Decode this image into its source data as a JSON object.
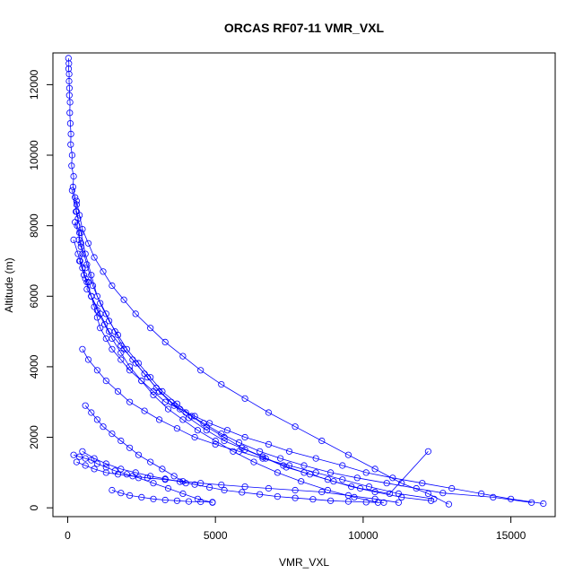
{
  "chart_data": {
    "type": "line",
    "title": "ORCAS RF07-11 VMR_VXL",
    "xlabel": "VMR_VXL",
    "ylabel": "Altitude (m)",
    "xlim": [
      -500,
      16500
    ],
    "ylim": [
      -250,
      12900
    ],
    "xticks": [
      0,
      5000,
      10000,
      15000
    ],
    "yticks": [
      0,
      2000,
      4000,
      6000,
      8000,
      10000,
      12000
    ],
    "series_color": "#0000ff",
    "marker": "open-circle",
    "grid": false,
    "legend": "none",
    "series": [
      {
        "x": [
          25,
          40,
          30,
          50,
          45,
          60,
          55,
          80,
          70,
          90,
          110,
          100,
          150,
          130,
          200,
          180,
          250,
          300,
          280,
          350,
          320,
          400,
          380,
          450,
          500,
          420,
          600,
          550,
          700,
          650,
          800,
          900,
          1000,
          1100,
          1300,
          1500,
          1800,
          2100,
          2500,
          2900,
          3300,
          3800,
          4300,
          4800,
          5400,
          6000,
          6800,
          7500,
          8400,
          9300,
          10100,
          11000,
          12000,
          13000,
          14000,
          15000,
          16100
        ],
        "y": [
          12750,
          12600,
          12450,
          12300,
          12100,
          11900,
          11700,
          11500,
          11200,
          10900,
          10600,
          10300,
          10000,
          9700,
          9400,
          9100,
          8800,
          8600,
          8400,
          8200,
          8000,
          7800,
          7600,
          7400,
          7200,
          7000,
          6800,
          6600,
          6400,
          6200,
          6000,
          5700,
          5400,
          5100,
          4800,
          4500,
          4200,
          3900,
          3600,
          3300,
          3000,
          2800,
          2600,
          2400,
          2200,
          2000,
          1800,
          1600,
          1400,
          1200,
          1000,
          850,
          700,
          550,
          400,
          250,
          120
        ]
      },
      {
        "x": [
          300,
          400,
          500,
          700,
          900,
          1200,
          1500,
          1900,
          2300,
          2800,
          3300,
          3900,
          4500,
          5200,
          6000,
          6800,
          7700,
          8600,
          9500,
          10400,
          11300,
          12200,
          12900
        ],
        "y": [
          8700,
          8300,
          7900,
          7500,
          7100,
          6700,
          6300,
          5900,
          5500,
          5100,
          4700,
          4300,
          3900,
          3500,
          3100,
          2700,
          2300,
          1900,
          1500,
          1100,
          700,
          400,
          100
        ]
      },
      {
        "x": [
          200,
          350,
          500,
          650,
          800,
          1000,
          1250,
          1500,
          1800,
          2100,
          2500,
          2900,
          3400,
          3900,
          4400,
          5000,
          5600,
          6300,
          7100,
          7900,
          8800,
          9700,
          10500
        ],
        "y": [
          7600,
          7200,
          6800,
          6400,
          6000,
          5600,
          5200,
          4800,
          4400,
          4000,
          3600,
          3200,
          2800,
          2500,
          2200,
          1900,
          1600,
          1300,
          1000,
          750,
          500,
          300,
          150
        ]
      },
      {
        "x": [
          250,
          450,
          650,
          850,
          1100,
          1400,
          1700,
          2000,
          2400,
          2800,
          3200,
          3700,
          4200,
          4700,
          5300,
          5900,
          6600,
          7300,
          8000,
          8800,
          9600,
          10400,
          11300,
          12300
        ],
        "y": [
          8100,
          7500,
          6900,
          6300,
          5800,
          5300,
          4900,
          4500,
          4100,
          3700,
          3300,
          2950,
          2600,
          2300,
          2000,
          1700,
          1450,
          1200,
          1000,
          800,
          600,
          450,
          300,
          200
        ]
      },
      {
        "x": [
          400,
          600,
          800,
          1100,
          1400,
          1800,
          2200,
          2600,
          3000,
          3500,
          4000,
          4600,
          5200,
          5800,
          6500,
          7200,
          8000,
          8900,
          9800,
          10800,
          11800,
          12700,
          14400,
          15700
        ],
        "y": [
          7000,
          6500,
          6000,
          5500,
          5000,
          4600,
          4200,
          3800,
          3400,
          3000,
          2700,
          2400,
          2100,
          1850,
          1600,
          1400,
          1200,
          1000,
          850,
          700,
          550,
          420,
          300,
          150
        ]
      },
      {
        "x": [
          150,
          300,
          450,
          600,
          800,
          1000,
          1300,
          1600,
          1900,
          2300,
          2700,
          3100,
          3600,
          4100,
          4700,
          5300,
          6000,
          6700,
          7400,
          8200,
          9000,
          9900,
          10900,
          12200
        ],
        "y": [
          9000,
          8400,
          7800,
          7200,
          6600,
          6000,
          5500,
          5000,
          4500,
          4100,
          3700,
          3300,
          2900,
          2550,
          2200,
          1900,
          1650,
          1400,
          1150,
          950,
          750,
          550,
          400,
          1600
        ]
      },
      {
        "x": [
          500,
          700,
          1000,
          1300,
          1700,
          2100,
          2600,
          3100,
          3700,
          4300,
          5000,
          5800,
          6600,
          7500,
          8400,
          9300,
          10200,
          11200,
          12400
        ],
        "y": [
          4500,
          4200,
          3900,
          3600,
          3300,
          3000,
          2750,
          2500,
          2250,
          2000,
          1800,
          1600,
          1400,
          1200,
          1000,
          800,
          600,
          400,
          250
        ]
      },
      {
        "x": [
          200,
          400,
          600,
          800,
          1000,
          1300,
          1600,
          2000,
          2400,
          2900,
          3400,
          3900,
          4400,
          4900
        ],
        "y": [
          1500,
          1450,
          1400,
          1350,
          1250,
          1150,
          1050,
          950,
          850,
          700,
          550,
          400,
          250,
          150
        ]
      },
      {
        "x": [
          300,
          600,
          900,
          1300,
          1700,
          2200,
          2700,
          3300,
          3900,
          4500,
          5200,
          6000,
          6800,
          7700,
          8600,
          9500,
          10400,
          11200
        ],
        "y": [
          1300,
          1200,
          1100,
          1000,
          950,
          900,
          850,
          800,
          750,
          700,
          650,
          600,
          550,
          500,
          450,
          350,
          250,
          150
        ]
      },
      {
        "x": [
          500,
          900,
          1300,
          1800,
          2300,
          2800,
          3300,
          3800,
          4300,
          4800,
          5300,
          5900,
          6500,
          7100,
          7700,
          8300,
          8900,
          9500,
          10100,
          10700
        ],
        "y": [
          1600,
          1400,
          1250,
          1100,
          1000,
          900,
          820,
          740,
          660,
          580,
          500,
          440,
          380,
          320,
          280,
          240,
          200,
          180,
          160,
          150
        ]
      },
      {
        "x": [
          1500,
          1800,
          2100,
          2500,
          2900,
          3300,
          3700,
          4100,
          4500,
          4900
        ],
        "y": [
          500,
          420,
          350,
          300,
          250,
          220,
          200,
          180,
          170,
          160
        ]
      },
      {
        "x": [
          600,
          800,
          1000,
          1200,
          1500,
          1800,
          2100,
          2400,
          2800,
          3200,
          3600,
          4000
        ],
        "y": [
          2900,
          2700,
          2500,
          2300,
          2100,
          1900,
          1700,
          1500,
          1300,
          1100,
          900,
          700
        ]
      }
    ]
  }
}
